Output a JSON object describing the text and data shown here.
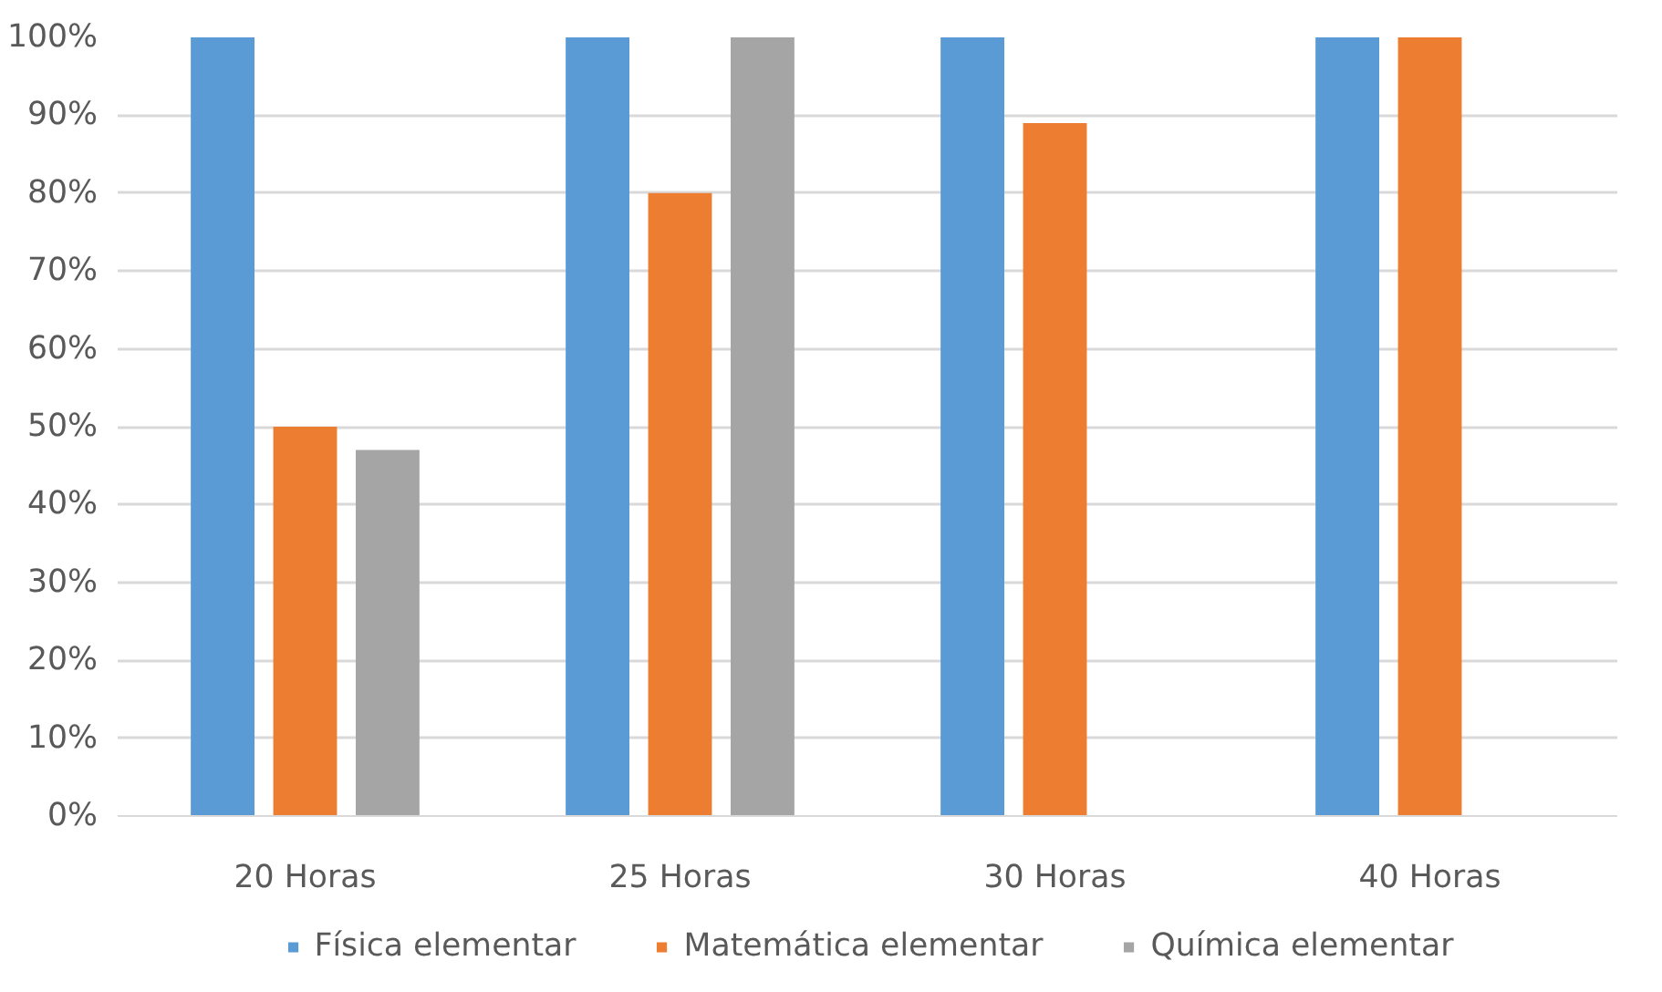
{
  "chart_data": {
    "type": "bar",
    "categories": [
      "20 Horas",
      "25 Horas",
      "30 Horas",
      "40 Horas"
    ],
    "series": [
      {
        "name": "Física elementar",
        "color": "#5b9bd5",
        "values": [
          100,
          100,
          100,
          100
        ]
      },
      {
        "name": "Matemática elementar",
        "color": "#ed7d31",
        "values": [
          50,
          80,
          89,
          100
        ]
      },
      {
        "name": "Química elementar",
        "color": "#a5a5a5",
        "values": [
          47,
          100,
          null,
          null
        ]
      }
    ],
    "ylim": [
      0,
      100
    ],
    "yticks": [
      {
        "value": 0,
        "label": "0%"
      },
      {
        "value": 10,
        "label": "10%"
      },
      {
        "value": 20,
        "label": "20%"
      },
      {
        "value": 30,
        "label": "30%"
      },
      {
        "value": 40,
        "label": "40%"
      },
      {
        "value": 50,
        "label": "50%"
      },
      {
        "value": 60,
        "label": "60%"
      },
      {
        "value": 70,
        "label": "70%"
      },
      {
        "value": 80,
        "label": "80%"
      },
      {
        "value": 90,
        "label": "90%"
      },
      {
        "value": 100,
        "label": "100%"
      }
    ],
    "grid": "y",
    "legend": "bottom"
  }
}
